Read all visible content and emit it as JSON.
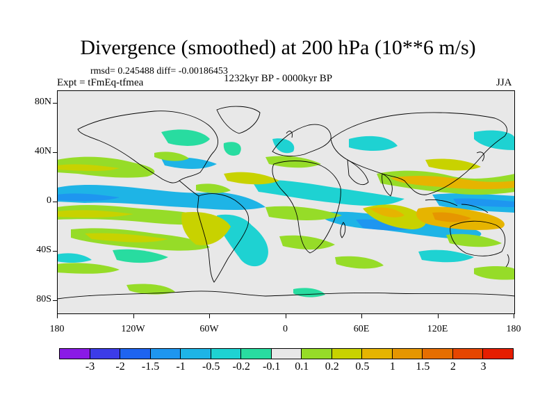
{
  "title": "Divergence (smoothed) at 200 hPa (10**6 m/s)",
  "stats": "rmsd= 0.245488 diff= -0.00186453",
  "experiment": "Expt = tFmEq-tfmea",
  "period": "1232kyr BP - 0000kyr BP",
  "season": "JJA",
  "map": {
    "lat_labels": [
      "80N",
      "40N",
      "0",
      "40S",
      "80S"
    ],
    "lat_values": [
      80,
      40,
      0,
      -40,
      -80
    ],
    "lon_labels": [
      "180",
      "120W",
      "60W",
      "0",
      "60E",
      "120E",
      "180"
    ],
    "lon_values": [
      -180,
      -120,
      -60,
      0,
      60,
      120,
      180
    ],
    "lat_range": [
      -90,
      90
    ],
    "lon_range": [
      -180,
      180
    ],
    "background_color": "#e8e8e8"
  },
  "colorbar": {
    "colors": [
      "#8a1ae6",
      "#3c3ce8",
      "#1e64f0",
      "#1e96f0",
      "#1eb4e6",
      "#1ed2d2",
      "#28dca0",
      "#e8e8e8",
      "#96dc28",
      "#c8d200",
      "#e6b400",
      "#e69600",
      "#e66e00",
      "#e64600",
      "#e61e00"
    ],
    "labels": [
      "-3",
      "-2",
      "-1.5",
      "-1",
      "-0.5",
      "-0.2",
      "-0.1",
      "0.1",
      "0.2",
      "0.5",
      "1",
      "1.5",
      "2",
      "3"
    ]
  }
}
